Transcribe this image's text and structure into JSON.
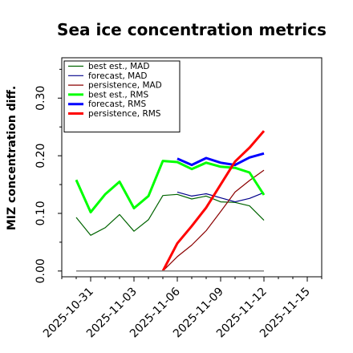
{
  "chart_data": {
    "type": "line",
    "title": "Sea ice concentration metrics",
    "ylabel": "MIZ concentration diff.",
    "xlabel": "",
    "x_ticks": [
      "2025-10-31",
      "2025-11-03",
      "2025-11-06",
      "2025-11-09",
      "2025-11-12",
      "2025-11-15"
    ],
    "x_tick_colors": [
      "#000000",
      "#000000",
      "#228B22",
      "#000000",
      "#000000",
      "#000000"
    ],
    "xlim": [
      "2025-10-29",
      "2025-11-16"
    ],
    "y_ticks": [
      "0.00",
      "0.10",
      "0.20",
      "0.30"
    ],
    "ylim": [
      -0.01,
      0.37
    ],
    "grid": false,
    "legend_position": "top-left",
    "series": [
      {
        "name": "best est., MAD",
        "color": "#006400",
        "width": 1.2,
        "x": [
          "2025-10-30",
          "2025-10-31",
          "2025-11-01",
          "2025-11-02",
          "2025-11-03",
          "2025-11-04",
          "2025-11-05",
          "2025-11-06",
          "2025-11-07",
          "2025-11-08",
          "2025-11-09",
          "2025-11-10",
          "2025-11-11",
          "2025-11-12"
        ],
        "y": [
          0.093,
          0.062,
          0.075,
          0.098,
          0.069,
          0.089,
          0.131,
          0.133,
          0.125,
          0.13,
          0.12,
          0.119,
          0.113,
          0.088
        ]
      },
      {
        "name": "forecast,  MAD",
        "color": "#00008B",
        "width": 1.2,
        "x": [
          "2025-11-06",
          "2025-11-07",
          "2025-11-08",
          "2025-11-09",
          "2025-11-10",
          "2025-11-11",
          "2025-11-12"
        ],
        "y": [
          0.137,
          0.13,
          0.134,
          0.127,
          0.12,
          0.126,
          0.136
        ]
      },
      {
        "name": "persistence, MAD",
        "color": "#8B0000",
        "width": 1.2,
        "x": [
          "2025-11-05",
          "2025-11-06",
          "2025-11-07",
          "2025-11-08",
          "2025-11-09",
          "2025-11-10",
          "2025-11-11",
          "2025-11-12"
        ],
        "y": [
          0.0,
          0.025,
          0.045,
          0.07,
          0.103,
          0.137,
          0.157,
          0.175
        ]
      },
      {
        "name": "best est., RMS",
        "color": "#00FF00",
        "width": 3,
        "x": [
          "2025-10-30",
          "2025-10-31",
          "2025-11-01",
          "2025-11-02",
          "2025-11-03",
          "2025-11-04",
          "2025-11-05",
          "2025-11-06",
          "2025-11-07",
          "2025-11-08",
          "2025-11-09",
          "2025-11-10",
          "2025-11-11",
          "2025-11-12"
        ],
        "y": [
          0.158,
          0.102,
          0.133,
          0.155,
          0.109,
          0.13,
          0.191,
          0.189,
          0.177,
          0.188,
          0.181,
          0.179,
          0.171,
          0.132
        ]
      },
      {
        "name": "forecast,  RMS",
        "color": "#0000FF",
        "width": 3,
        "x": [
          "2025-11-06",
          "2025-11-07",
          "2025-11-08",
          "2025-11-09",
          "2025-11-10",
          "2025-11-11",
          "2025-11-12"
        ],
        "y": [
          0.195,
          0.184,
          0.196,
          0.188,
          0.184,
          0.197,
          0.204
        ]
      },
      {
        "name": "persistence, RMS",
        "color": "#FF0000",
        "width": 3,
        "x": [
          "2025-11-05",
          "2025-11-06",
          "2025-11-07",
          "2025-11-08",
          "2025-11-09",
          "2025-11-10",
          "2025-11-11",
          "2025-11-12"
        ],
        "y": [
          0.0,
          0.048,
          0.078,
          0.11,
          0.15,
          0.19,
          0.214,
          0.243
        ]
      },
      {
        "color": "#808080",
        "width": 1.5,
        "legend": false,
        "x": [
          "2025-10-30",
          "2025-11-12"
        ],
        "y": [
          0.0,
          0.0
        ]
      }
    ]
  }
}
